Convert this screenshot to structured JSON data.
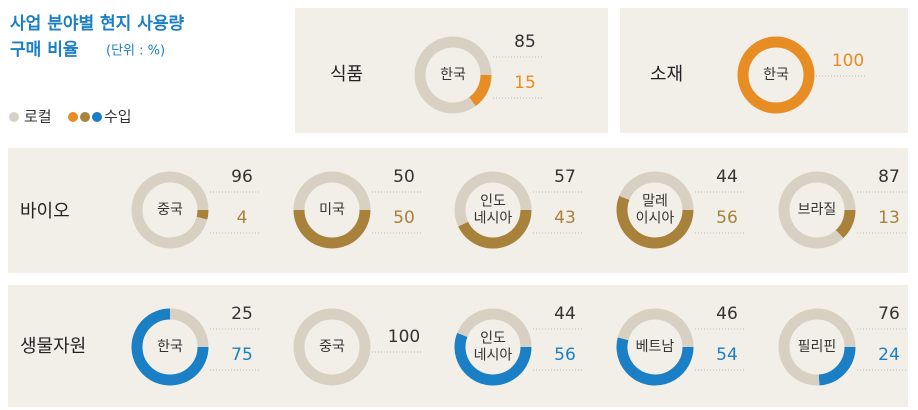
{
  "title": [
    "사업 분야별 현지 사용량",
    "구매 비율"
  ],
  "unit": "(단위 : %)",
  "legend": {
    "local": "로컬",
    "import": "수입"
  },
  "local_color": "#d8d1c3",
  "panels": [
    {
      "label": "식품",
      "color": "#e88c24",
      "donuts": [
        {
          "label": [
            "한국"
          ],
          "local": 85,
          "import": 15
        }
      ]
    },
    {
      "label": "소재",
      "color": "#e88c24",
      "donuts": [
        {
          "label": [
            "한국"
          ],
          "import": 100
        }
      ]
    },
    {
      "label": "바이오",
      "color": "#a8813a",
      "donuts": [
        {
          "label": [
            "중국"
          ],
          "local": 96,
          "import": 4
        },
        {
          "label": [
            "미국"
          ],
          "local": 50,
          "import": 50
        },
        {
          "label": [
            "인도",
            "네시아"
          ],
          "local": 57,
          "import": 43
        },
        {
          "label": [
            "말레",
            "이시아"
          ],
          "local": 44,
          "import": 56
        },
        {
          "label": [
            "브라질"
          ],
          "local": 87,
          "import": 13
        }
      ]
    },
    {
      "label": "생물자원",
      "color": "#1a7fc4",
      "donuts": [
        {
          "label": [
            "한국"
          ],
          "local": 25,
          "import": 75
        },
        {
          "label": [
            "중국"
          ],
          "local": 100
        },
        {
          "label": [
            "인도",
            "네시아"
          ],
          "local": 44,
          "import": 56
        },
        {
          "label": [
            "베트남"
          ],
          "local": 46,
          "import": 54
        },
        {
          "label": [
            "필리핀"
          ],
          "local": 76,
          "import": 24
        }
      ]
    }
  ]
}
